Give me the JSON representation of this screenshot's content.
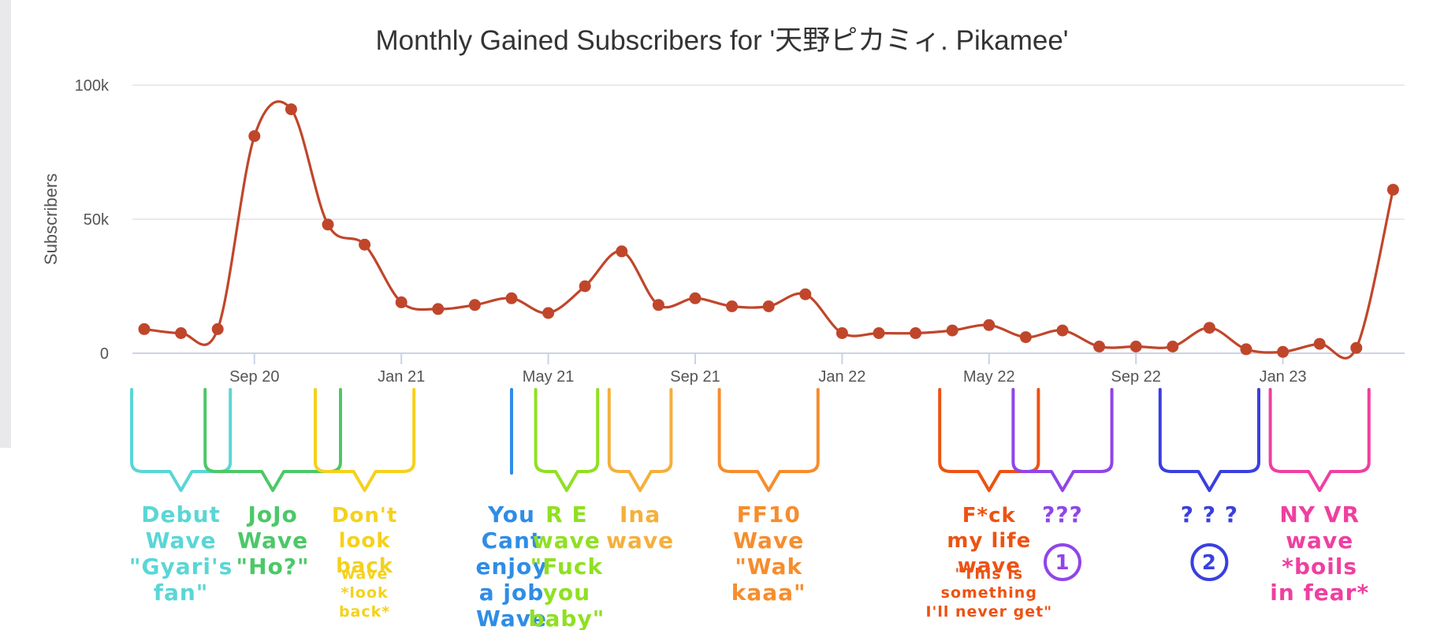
{
  "chart_data": {
    "type": "line",
    "title": "Monthly Gained Subscribers for '天野ピカミィ. Pikamee'",
    "ylabel": "Subscribers",
    "ylim": [
      0,
      100000
    ],
    "ytick_labels": [
      "0",
      "50k",
      "100k"
    ],
    "xtick_labels": [
      "Sep 20",
      "Jan 21",
      "May 21",
      "Sep 21",
      "Jan 22",
      "May 22",
      "Sep 22",
      "Jan 23"
    ],
    "grid": true,
    "line_color": "#c0462b",
    "points": [
      {
        "x": "2020-06",
        "y": 9000
      },
      {
        "x": "2020-07",
        "y": 7500
      },
      {
        "x": "2020-08",
        "y": 9000
      },
      {
        "x": "2020-09",
        "y": 81000
      },
      {
        "x": "2020-10",
        "y": 91000
      },
      {
        "x": "2020-11",
        "y": 48000
      },
      {
        "x": "2020-12",
        "y": 40500
      },
      {
        "x": "2021-01",
        "y": 19000
      },
      {
        "x": "2021-02",
        "y": 16500
      },
      {
        "x": "2021-03",
        "y": 18000
      },
      {
        "x": "2021-04",
        "y": 20500
      },
      {
        "x": "2021-05",
        "y": 15000
      },
      {
        "x": "2021-06",
        "y": 25000
      },
      {
        "x": "2021-07",
        "y": 38000
      },
      {
        "x": "2021-08",
        "y": 18000
      },
      {
        "x": "2021-09",
        "y": 20500
      },
      {
        "x": "2021-10",
        "y": 17500
      },
      {
        "x": "2021-11",
        "y": 17500
      },
      {
        "x": "2021-12",
        "y": 22000
      },
      {
        "x": "2022-01",
        "y": 7500
      },
      {
        "x": "2022-02",
        "y": 7500
      },
      {
        "x": "2022-03",
        "y": 7500
      },
      {
        "x": "2022-04",
        "y": 8500
      },
      {
        "x": "2022-05",
        "y": 10500
      },
      {
        "x": "2022-06",
        "y": 6000
      },
      {
        "x": "2022-07",
        "y": 8500
      },
      {
        "x": "2022-08",
        "y": 2500
      },
      {
        "x": "2022-09",
        "y": 2500
      },
      {
        "x": "2022-10",
        "y": 2500
      },
      {
        "x": "2022-11",
        "y": 9500
      },
      {
        "x": "2022-12",
        "y": 1500
      },
      {
        "x": "2023-01",
        "y": 500
      },
      {
        "x": "2023-02",
        "y": 3500
      },
      {
        "x": "2023-03",
        "y": 2000
      },
      {
        "x": "2023-04",
        "y": 61000
      }
    ]
  },
  "annotations": [
    {
      "lines": [
        "Debut",
        "Wave",
        "\"Gyari's",
        "fan\""
      ],
      "color": "#5ad6d6",
      "type": "bracket",
      "from": "2020-06",
      "to": "2020-08"
    },
    {
      "lines": [
        "JoJo",
        "Wave",
        "\"Ho?\""
      ],
      "color": "#4cc868",
      "type": "bracket",
      "from": "2020-08",
      "to": "2020-11"
    },
    {
      "lines": [
        "Don't",
        "look",
        "back",
        "wave",
        "*look",
        "back*"
      ],
      "color": "#f5d11c",
      "type": "bracket",
      "from": "2020-11",
      "to": "2021-01"
    },
    {
      "lines": [
        "You",
        "Cant",
        "enjoy",
        "a job",
        "Wave"
      ],
      "color": "#2f8de6",
      "type": "line",
      "from": "2021-04"
    },
    {
      "lines": [
        "R E",
        "wave",
        "\"Fuck",
        "you",
        "baby\""
      ],
      "color": "#90e022",
      "type": "bracket",
      "from": "2021-05",
      "to": "2021-06"
    },
    {
      "lines": [
        "Ina",
        "wave"
      ],
      "color": "#f4b03c",
      "type": "bracket",
      "from": "2021-07",
      "to": "2021-08"
    },
    {
      "lines": [
        "FF10",
        "Wave",
        "\"Wak",
        "kaaa\""
      ],
      "color": "#f68d2d",
      "type": "bracket",
      "from": "2021-10",
      "to": "2021-12"
    },
    {
      "lines": [
        "F*ck",
        "my life",
        "wave",
        "\"This is",
        "something",
        "I'll never get\""
      ],
      "color": "#ee5212",
      "type": "bracket",
      "from": "2022-04",
      "to": "2022-06"
    },
    {
      "lines": [
        "???",
        "1"
      ],
      "color": "#9045e8",
      "type": "bracket",
      "from": "2022-06",
      "to": "2022-08"
    },
    {
      "lines": [
        "? ? ?",
        "2"
      ],
      "color": "#3a3fe0",
      "type": "bracket",
      "from": "2022-10",
      "to": "2022-12"
    },
    {
      "lines": [
        "NY VR",
        "wave",
        "*boils",
        "in fear*"
      ],
      "color": "#ef3fa0",
      "type": "bracket",
      "from": "2023-01",
      "to": "2023-03"
    }
  ]
}
